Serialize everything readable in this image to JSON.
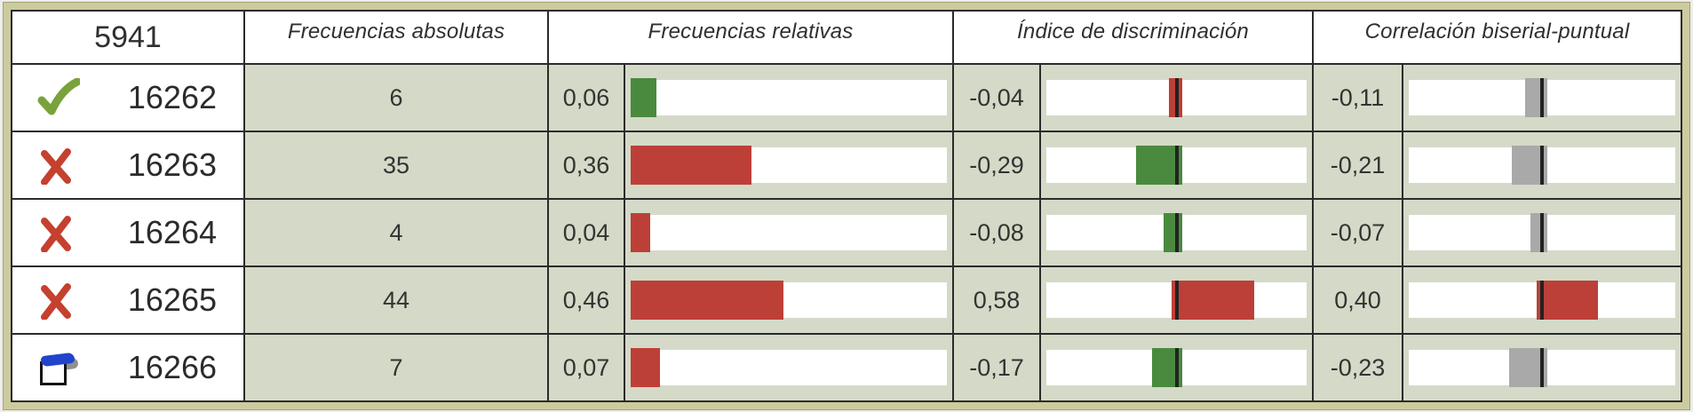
{
  "palette": {
    "green": "#4a8a3e",
    "red": "#bc4038",
    "gray": "#a9a9a9",
    "marker": "#222222"
  },
  "header": {
    "item_id": "5941",
    "col_abs_freq": "Frecuencias absolutas",
    "col_rel_freq": "Frecuencias relativas",
    "col_discrimination": "Índice de discriminación",
    "col_biserial": "Correlación biserial-puntual"
  },
  "rows": [
    {
      "id": "16262",
      "icon": "correct",
      "abs": "6",
      "rel": {
        "label": "0,06",
        "value": 0.06,
        "color": "green"
      },
      "disc": {
        "label": "-0,04",
        "value": -0.04,
        "color": "red"
      },
      "corr": {
        "label": "-0,11",
        "value": -0.11,
        "color": "gray"
      }
    },
    {
      "id": "16263",
      "icon": "wrong",
      "abs": "35",
      "rel": {
        "label": "0,36",
        "value": 0.36,
        "color": "red"
      },
      "disc": {
        "label": "-0,29",
        "value": -0.29,
        "color": "green"
      },
      "corr": {
        "label": "-0,21",
        "value": -0.21,
        "color": "gray"
      }
    },
    {
      "id": "16264",
      "icon": "wrong",
      "abs": "4",
      "rel": {
        "label": "0,04",
        "value": 0.04,
        "color": "red"
      },
      "disc": {
        "label": "-0,08",
        "value": -0.08,
        "color": "green"
      },
      "corr": {
        "label": "-0,07",
        "value": -0.07,
        "color": "gray"
      }
    },
    {
      "id": "16265",
      "icon": "wrong",
      "abs": "44",
      "rel": {
        "label": "0,46",
        "value": 0.46,
        "color": "red"
      },
      "disc": {
        "label": "0,58",
        "value": 0.58,
        "color": "red"
      },
      "corr": {
        "label": "0,40",
        "value": 0.4,
        "color": "red"
      }
    },
    {
      "id": "16266",
      "icon": "blank",
      "abs": "7",
      "rel": {
        "label": "0,07",
        "value": 0.07,
        "color": "red"
      },
      "disc": {
        "label": "-0,17",
        "value": -0.17,
        "color": "green"
      },
      "corr": {
        "label": "-0,23",
        "value": -0.23,
        "color": "gray"
      }
    }
  ]
}
